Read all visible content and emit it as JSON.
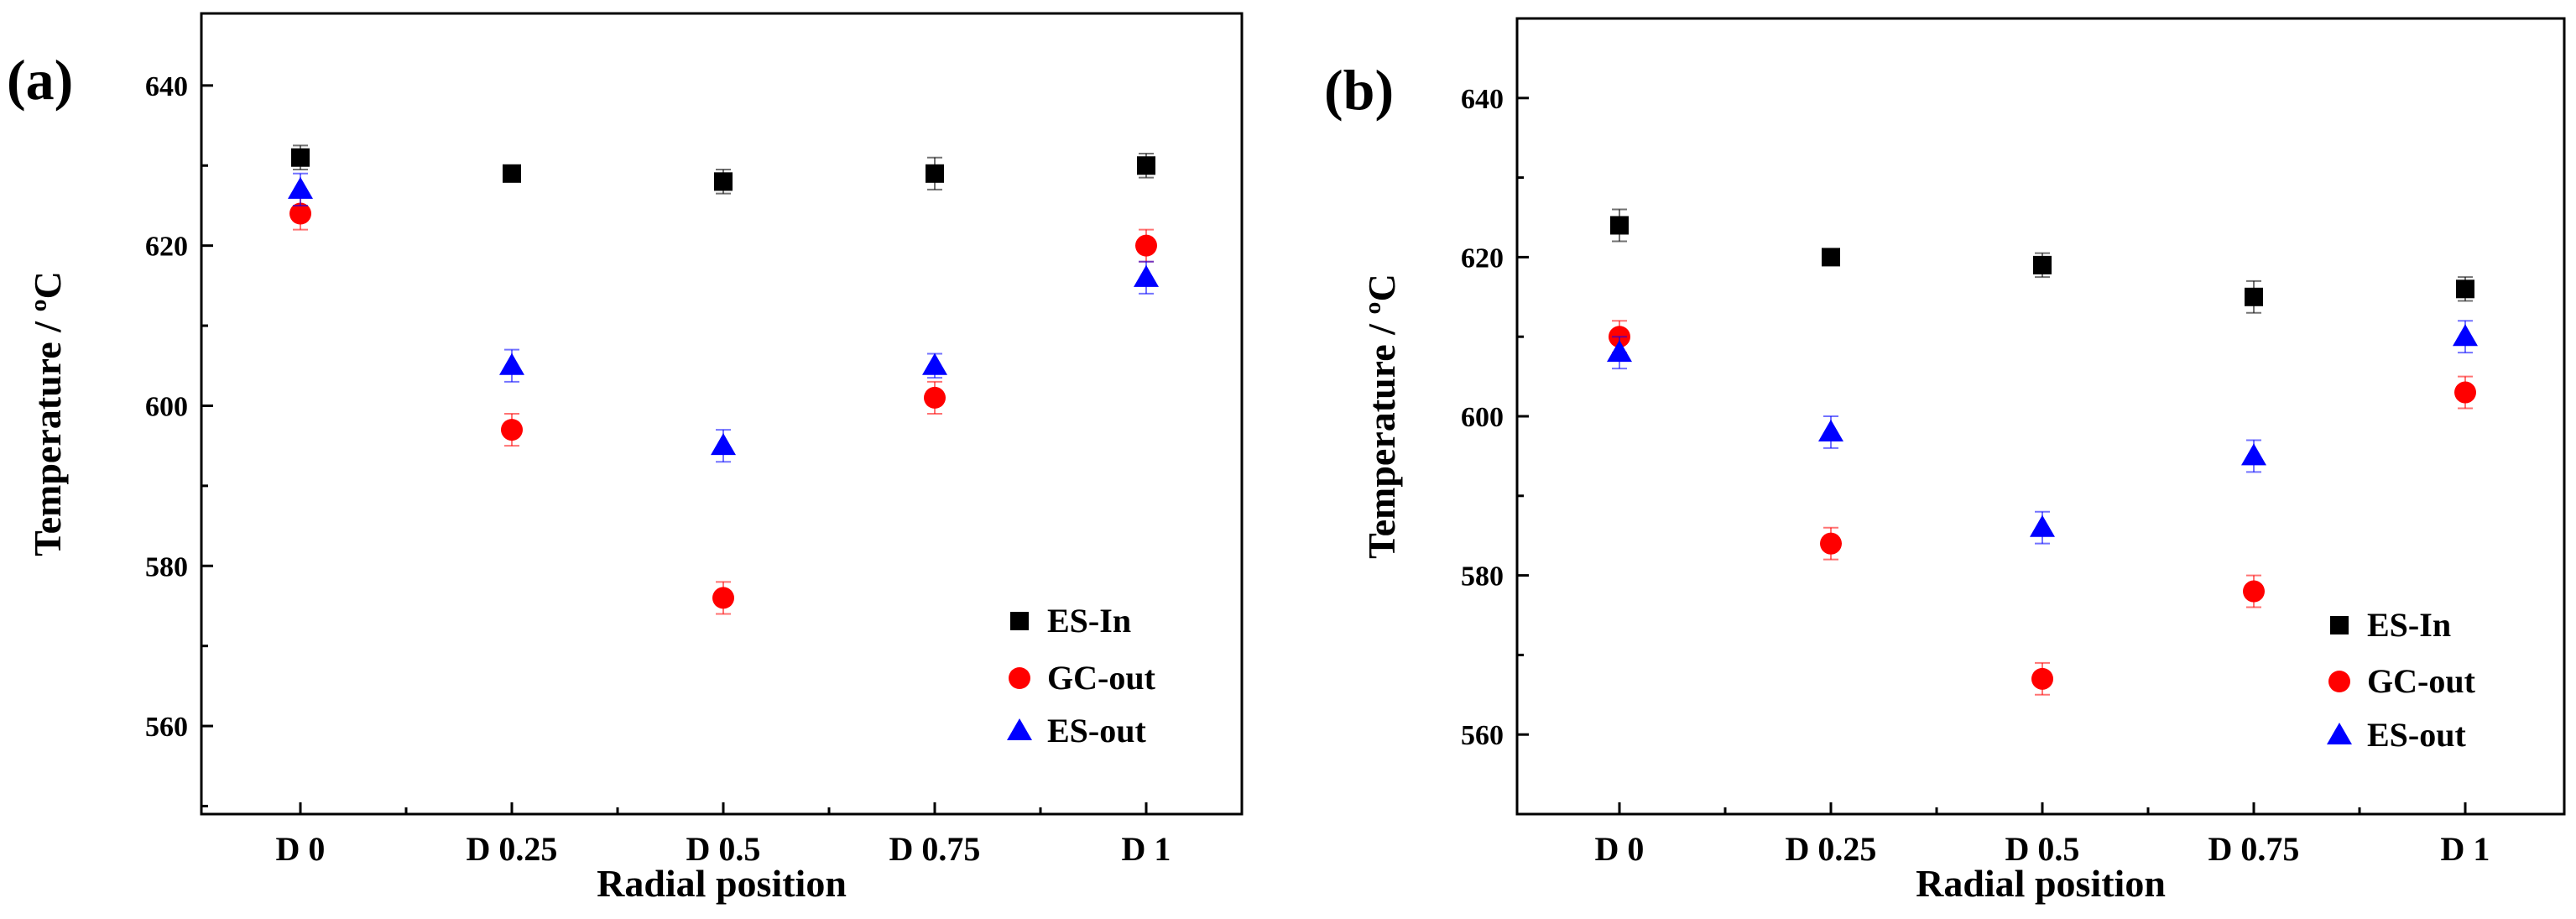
{
  "chart_data": [
    {
      "type": "scatter",
      "panel_label": "(a)",
      "xlabel": "Radial position",
      "ylabel": "Temperature / ºC",
      "categories": [
        "D 0",
        "D 0.25",
        "D 0.5",
        "D 0.75",
        "D 1"
      ],
      "ylim": [
        549,
        649
      ],
      "yticks": [
        "560",
        "580",
        "600",
        "620",
        "640"
      ],
      "legend_position": "bottom-right",
      "series": [
        {
          "name": "ES-In",
          "marker": "square",
          "color": "#000000",
          "values": [
            631,
            629,
            628,
            629,
            630
          ],
          "errors": [
            1.5,
            1,
            1.5,
            2,
            1.5
          ]
        },
        {
          "name": "GC-out",
          "marker": "circle",
          "color": "#ff0000",
          "values": [
            624,
            597,
            576,
            601,
            620
          ],
          "errors": [
            2,
            2,
            2,
            2,
            2
          ]
        },
        {
          "name": "ES-out",
          "marker": "triangle",
          "color": "#0000ff",
          "values": [
            627,
            605,
            595,
            605,
            616
          ],
          "errors": [
            2,
            2,
            2,
            1.5,
            2
          ]
        }
      ]
    },
    {
      "type": "scatter",
      "panel_label": "(b)",
      "xlabel": "Radial position",
      "ylabel": "Temperature / ºC",
      "categories": [
        "D 0",
        "D 0.25",
        "D 0.5",
        "D 0.75",
        "D 1"
      ],
      "ylim": [
        550,
        650
      ],
      "yticks": [
        "560",
        "580",
        "600",
        "620",
        "640"
      ],
      "legend_position": "bottom-right",
      "series": [
        {
          "name": "ES-In",
          "marker": "square",
          "color": "#000000",
          "values": [
            624,
            620,
            619,
            615,
            616
          ],
          "errors": [
            2,
            1,
            1.5,
            2,
            1.5
          ]
        },
        {
          "name": "GC-out",
          "marker": "circle",
          "color": "#ff0000",
          "values": [
            610,
            584,
            567,
            578,
            603
          ],
          "errors": [
            2,
            2,
            2,
            2,
            2
          ]
        },
        {
          "name": "ES-out",
          "marker": "triangle",
          "color": "#0000ff",
          "values": [
            608,
            598,
            586,
            595,
            610
          ],
          "errors": [
            2,
            2,
            2,
            2,
            2
          ]
        }
      ]
    }
  ]
}
